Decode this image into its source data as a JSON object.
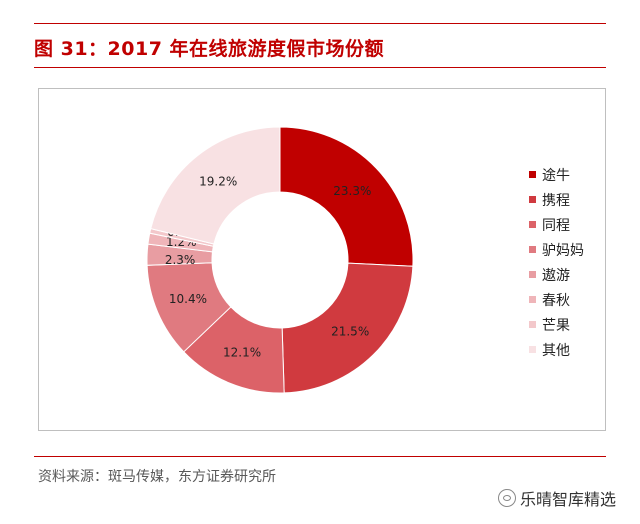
{
  "title": "图 31：2017 年在线旅游度假市场份额",
  "source": "资料来源：斑马传媒，东方证券研究所",
  "watermark": "乐晴智库精选",
  "chart_data": {
    "type": "pie",
    "categories": [
      "途牛",
      "携程",
      "同程",
      "驴妈妈",
      "遨游",
      "春秋",
      "芒果",
      "其他"
    ],
    "values": [
      23.3,
      21.5,
      12.1,
      10.4,
      2.3,
      1.2,
      0.5,
      19.2
    ],
    "value_labels": [
      "23.3%",
      "21.5%",
      "12.1%",
      "10.4%",
      "2.3%",
      "1.2%",
      "0.5%",
      "19.2%"
    ],
    "colors": [
      "#c00000",
      "#d03a3f",
      "#dc6268",
      "#e07a80",
      "#e89da2",
      "#efb5b9",
      "#f3c8cb",
      "#f8e1e3"
    ],
    "legend_position": "right"
  }
}
